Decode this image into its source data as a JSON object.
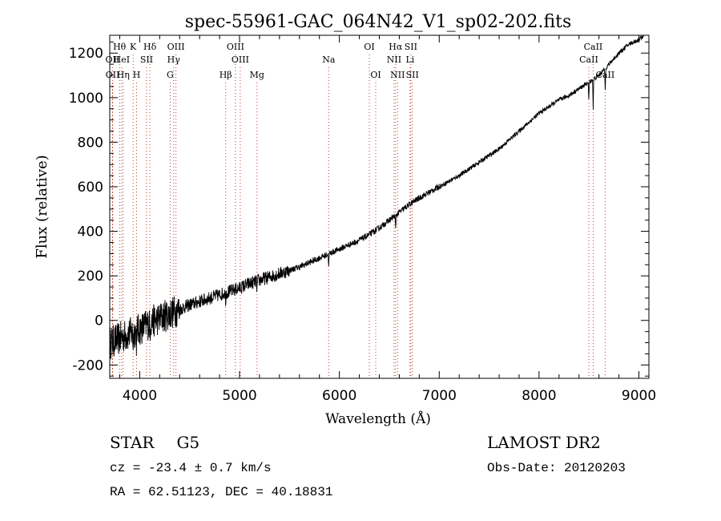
{
  "chart_data": {
    "type": "line",
    "title": "spec-55961-GAC_064N42_V1_sp02-202.fits",
    "xlabel": "Wavelength (Å)",
    "ylabel": "Flux (relative)",
    "xlim": [
      3700,
      9100
    ],
    "ylim": [
      -260,
      1280
    ],
    "xticks": [
      4000,
      5000,
      6000,
      7000,
      8000,
      9000
    ],
    "yticks": [
      -200,
      0,
      200,
      400,
      600,
      800,
      1000,
      1200
    ],
    "grid": false,
    "series": [
      {
        "name": "flux",
        "x": [
          3700,
          3800,
          3900,
          4000,
          4100,
          4200,
          4300,
          4400,
          4500,
          4600,
          4700,
          4800,
          4900,
          5000,
          5100,
          5200,
          5300,
          5400,
          5500,
          5600,
          5700,
          5800,
          5900,
          6000,
          6100,
          6200,
          6300,
          6400,
          6500,
          6600,
          6700,
          6800,
          6900,
          7000,
          7100,
          7200,
          7300,
          7400,
          7500,
          7600,
          7700,
          7800,
          7900,
          8000,
          8100,
          8200,
          8300,
          8400,
          8500,
          8600,
          8700,
          8800,
          8900,
          9000,
          9050
        ],
        "y": [
          -100,
          -80,
          -60,
          -40,
          -10,
          10,
          30,
          50,
          70,
          85,
          100,
          115,
          130,
          145,
          165,
          180,
          195,
          210,
          225,
          240,
          260,
          280,
          300,
          320,
          340,
          360,
          385,
          415,
          450,
          485,
          520,
          550,
          575,
          600,
          625,
          650,
          680,
          710,
          740,
          770,
          810,
          850,
          890,
          930,
          960,
          990,
          1010,
          1040,
          1070,
          1100,
          1150,
          1200,
          1240,
          1260,
          1280
        ]
      }
    ],
    "lines": [
      {
        "label": "Hθ",
        "wave": 3798,
        "row": 1
      },
      {
        "label": "OII",
        "wave": 3727,
        "row": 2
      },
      {
        "label": "OII",
        "wave": 3729,
        "row": 3
      },
      {
        "label": "HeI",
        "wave": 3819,
        "row": 2
      },
      {
        "label": "Hη",
        "wave": 3835,
        "row": 3
      },
      {
        "label": "K",
        "wave": 3934,
        "row": 1
      },
      {
        "label": "SII",
        "wave": 4069,
        "row": 2
      },
      {
        "label": "H",
        "wave": 3969,
        "row": 3
      },
      {
        "label": "Hδ",
        "wave": 4102,
        "row": 1
      },
      {
        "label": "OIII",
        "wave": 4363,
        "row": 1
      },
      {
        "label": "Hγ",
        "wave": 4340,
        "row": 2
      },
      {
        "label": "G",
        "wave": 4305,
        "row": 3
      },
      {
        "label": "OIII",
        "wave": 4959,
        "row": 1
      },
      {
        "label": "OIII",
        "wave": 5007,
        "row": 2
      },
      {
        "label": "Hβ",
        "wave": 4861,
        "row": 3
      },
      {
        "label": "Mg",
        "wave": 5175,
        "row": 3
      },
      {
        "label": "Na",
        "wave": 5893,
        "row": 2
      },
      {
        "label": "OI",
        "wave": 6300,
        "row": 1
      },
      {
        "label": "OI",
        "wave": 6364,
        "row": 3
      },
      {
        "label": "Hα",
        "wave": 6563,
        "row": 1
      },
      {
        "label": "NII",
        "wave": 6548,
        "row": 2
      },
      {
        "label": "NII",
        "wave": 6583,
        "row": 3
      },
      {
        "label": "SII",
        "wave": 6716,
        "row": 1
      },
      {
        "label": "Li",
        "wave": 6708,
        "row": 2
      },
      {
        "label": "SII",
        "wave": 6731,
        "row": 3
      },
      {
        "label": "CaII",
        "wave": 8542,
        "row": 1
      },
      {
        "label": "CaII",
        "wave": 8498,
        "row": 2
      },
      {
        "label": "CaII",
        "wave": 8662,
        "row": 3
      }
    ]
  },
  "info": {
    "object_class": "STAR",
    "subclass": "G5",
    "survey": "LAMOST DR2",
    "redshift": "cz = -23.4 ± 0.7 km/s",
    "obs_date": "Obs-Date: 20120203",
    "coords": "RA =  62.51123, DEC =  40.18831"
  }
}
